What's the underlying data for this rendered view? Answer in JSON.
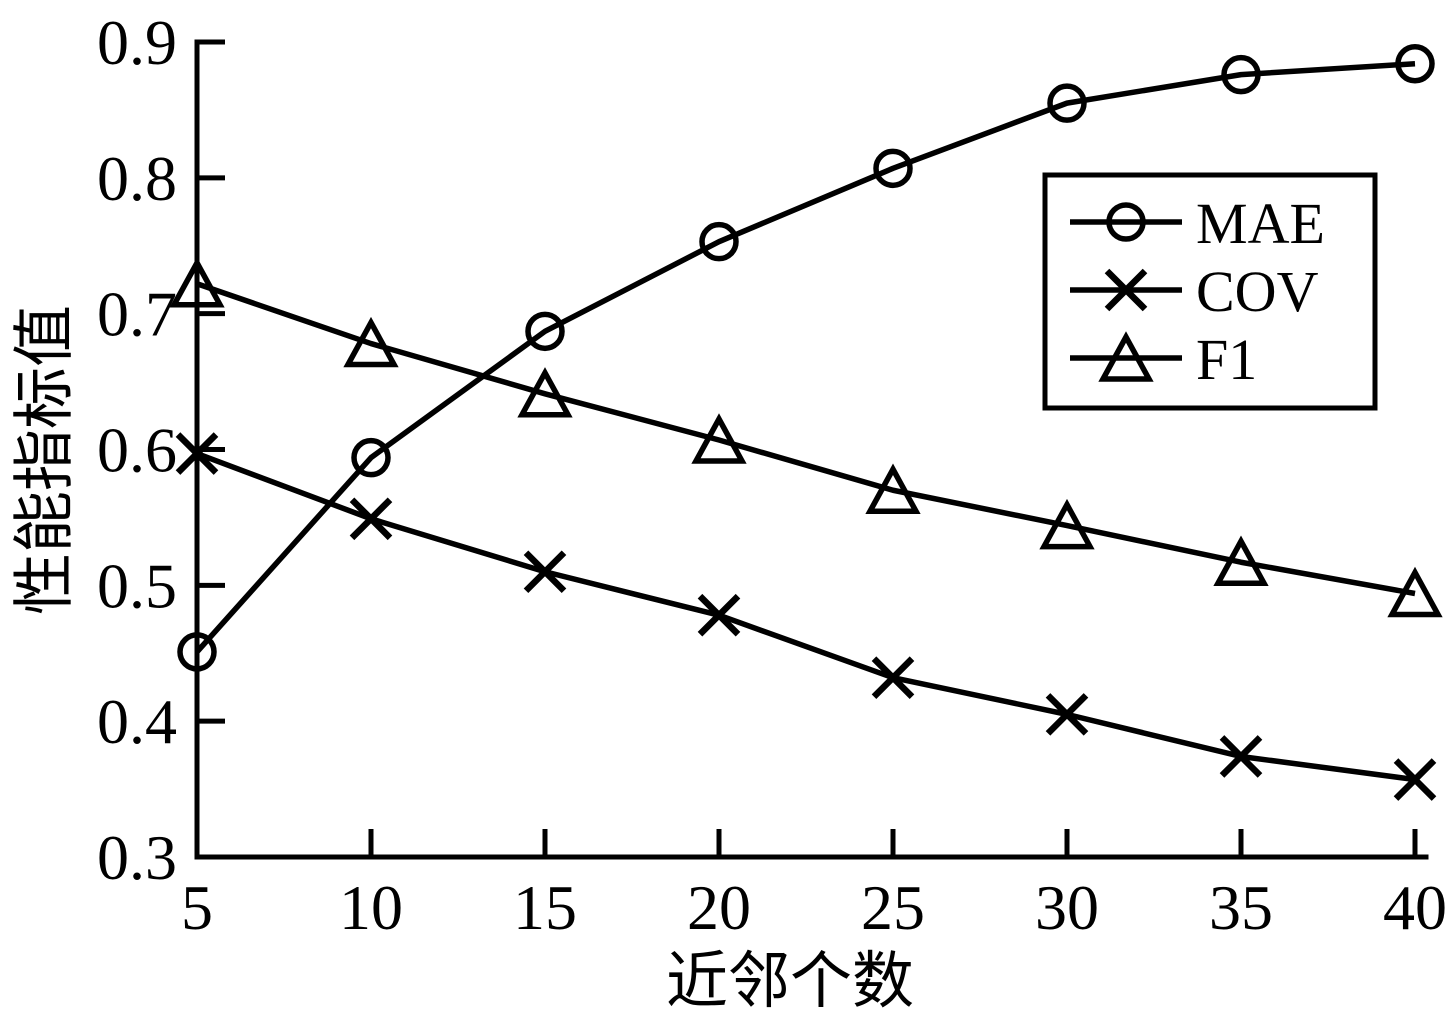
{
  "figure": {
    "background": "#ffffff",
    "line_color": "#000000"
  },
  "chart_data": {
    "type": "line",
    "title": "",
    "xlabel": "近邻个数",
    "ylabel": "性能指标值",
    "x": [
      5,
      10,
      15,
      20,
      25,
      30,
      35,
      40
    ],
    "series": [
      {
        "name": "MAE",
        "marker": "circle",
        "values": [
          0.451,
          0.594,
          0.687,
          0.753,
          0.807,
          0.855,
          0.876,
          0.884
        ]
      },
      {
        "name": "COV",
        "marker": "x",
        "values": [
          0.597,
          0.549,
          0.51,
          0.478,
          0.432,
          0.405,
          0.374,
          0.357
        ]
      },
      {
        "name": "F1",
        "marker": "triangle",
        "values": [
          0.722,
          0.678,
          0.641,
          0.607,
          0.57,
          0.544,
          0.517,
          0.494
        ]
      }
    ],
    "xlim": [
      5,
      40
    ],
    "ylim": [
      0.3,
      0.9
    ],
    "x_ticks": [
      5,
      10,
      15,
      20,
      25,
      30,
      35,
      40
    ],
    "y_ticks": [
      0.3,
      0.4,
      0.5,
      0.6,
      0.7,
      0.8,
      0.9
    ],
    "grid": false,
    "legend_position": "upper right",
    "legend_entries": [
      "MAE",
      "COV",
      "F1"
    ]
  }
}
